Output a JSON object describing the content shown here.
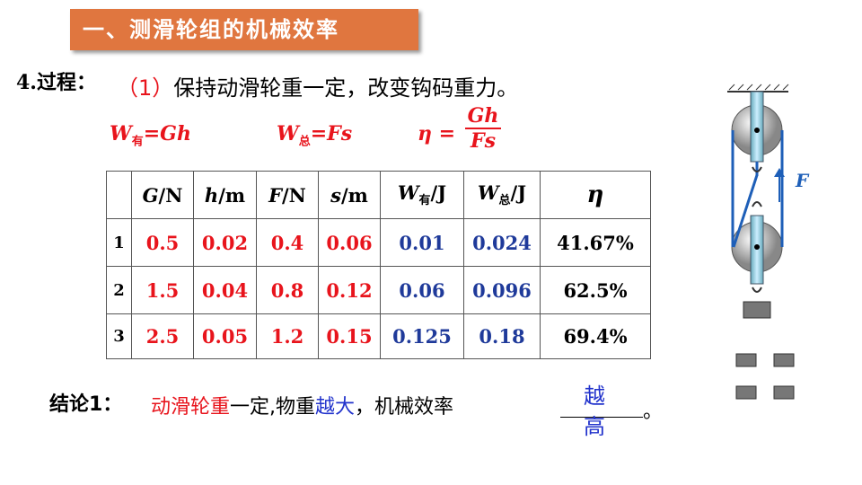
{
  "header": {
    "title": "一、测滑轮组的机械效率"
  },
  "step": {
    "label": "4.过程：",
    "number": "（1）",
    "text": "保持动滑轮重一定，改变钩码重力。"
  },
  "formulas": [
    {
      "symbol": "W",
      "sub": "有",
      "rhs": "=Gh"
    },
    {
      "symbol": "W",
      "sub": "总",
      "rhs": "=Fs"
    },
    {
      "symbol": "η",
      "eq": "=",
      "numerator": "Gh",
      "denominator": "Fs"
    }
  ],
  "table": {
    "header": [
      {
        "main": "G",
        "unit": "/N"
      },
      {
        "main": "h",
        "unit": "/m"
      },
      {
        "main": "F",
        "unit": "/N"
      },
      {
        "main": "s",
        "unit": "/m"
      },
      {
        "main": "W",
        "sub": "有",
        "unit": "/J"
      },
      {
        "main": "W",
        "sub": "总",
        "unit": "/J"
      },
      {
        "main": "η"
      }
    ],
    "rows": [
      [
        "1",
        "0.5",
        "0.02",
        "0.4",
        "0.06",
        "0.01",
        "0.024",
        "41.67%"
      ],
      [
        "2",
        "1.5",
        "0.04",
        "0.8",
        "0.12",
        "0.06",
        "0.096",
        "62.5%"
      ],
      [
        "3",
        "2.5",
        "0.05",
        "1.2",
        "0.15",
        "0.125",
        "0.18",
        "69.4%"
      ]
    ]
  },
  "conclusion": {
    "label": "结论1：",
    "part1": "动滑轮重",
    "part2": "一定,物重",
    "part3": "越大",
    "part4": "，机械效率",
    "answer": "越高",
    "end": "。"
  },
  "diagram": {
    "force_label": "F"
  }
}
